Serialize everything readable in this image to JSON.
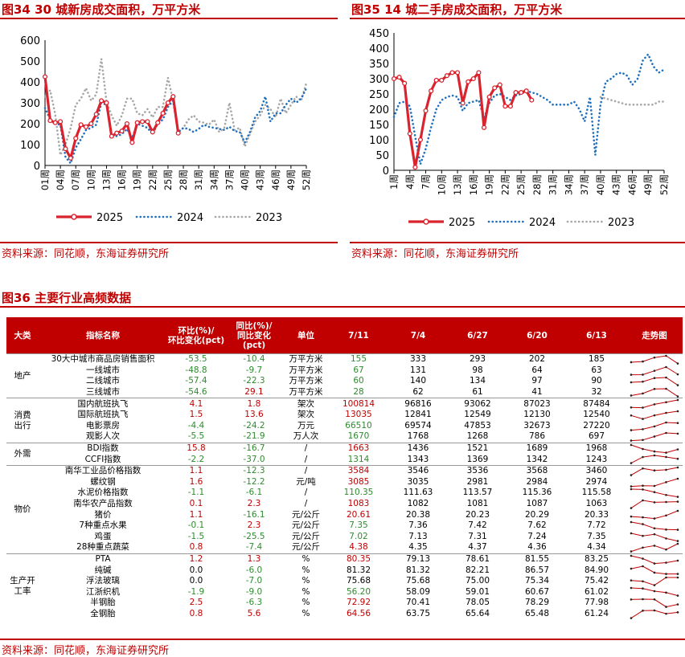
{
  "fig34": {
    "title": "图34 30 城新房成交面积，万平方米",
    "source": "资料来源：同花顺，东海证券研究所",
    "chart_data": {
      "type": "line",
      "title": "图34 30 城新房成交面积，万平方米",
      "xlabel": "",
      "ylabel": "",
      "ylim": [
        0,
        600
      ],
      "yticks": [
        0,
        100,
        200,
        300,
        400,
        500,
        600
      ],
      "xticks": [
        "01周",
        "04周",
        "07周",
        "10周",
        "13周",
        "16周",
        "19周",
        "22周",
        "25周",
        "28周",
        "31周",
        "34周",
        "37周",
        "40周",
        "43周",
        "46周",
        "49周",
        "52周"
      ],
      "legend_position": "bottom",
      "series": [
        {
          "name": "2025",
          "style": "solid-markers",
          "color": "#d9232e",
          "x": [
            1,
            2,
            3,
            4,
            5,
            6,
            7,
            8,
            9,
            10,
            11,
            12,
            13,
            14,
            15,
            16,
            17,
            18,
            19,
            20,
            21,
            22,
            23,
            24,
            25,
            26,
            27,
            28
          ],
          "values": [
            425,
            215,
            205,
            210,
            80,
            35,
            130,
            195,
            185,
            200,
            245,
            310,
            300,
            140,
            155,
            165,
            200,
            110,
            205,
            210,
            210,
            160,
            205,
            250,
            300,
            330,
            155,
            null
          ]
        },
        {
          "name": "2024",
          "style": "dotted",
          "color": "#1f6fbf",
          "x": [
            1,
            2,
            3,
            4,
            5,
            6,
            7,
            8,
            9,
            10,
            11,
            12,
            13,
            14,
            15,
            16,
            17,
            18,
            19,
            20,
            21,
            22,
            23,
            24,
            25,
            26,
            27,
            28,
            29,
            30,
            31,
            32,
            33,
            34,
            35,
            36,
            37,
            38,
            39,
            40,
            41,
            42,
            43,
            44,
            45,
            46,
            47,
            48,
            49,
            50,
            51,
            52
          ],
          "values": [
            275,
            220,
            200,
            195,
            40,
            10,
            85,
            125,
            170,
            180,
            195,
            300,
            290,
            145,
            140,
            150,
            175,
            130,
            200,
            190,
            180,
            150,
            200,
            220,
            280,
            310,
            160,
            180,
            175,
            160,
            175,
            195,
            185,
            180,
            175,
            170,
            185,
            165,
            160,
            110,
            160,
            230,
            260,
            330,
            210,
            250,
            250,
            290,
            320,
            300,
            320,
            370
          ]
        },
        {
          "name": "2023",
          "style": "dotted",
          "color": "#a6a6a6",
          "x": [
            1,
            2,
            3,
            4,
            5,
            6,
            7,
            8,
            9,
            10,
            11,
            12,
            13,
            14,
            15,
            16,
            17,
            18,
            19,
            20,
            21,
            22,
            23,
            24,
            25,
            26,
            27,
            28,
            29,
            30,
            31,
            32,
            33,
            34,
            35,
            36,
            37,
            38,
            39,
            40,
            41,
            42,
            43,
            44,
            45,
            46,
            47,
            48,
            49,
            50,
            51,
            52
          ],
          "values": [
            330,
            360,
            245,
            50,
            100,
            180,
            290,
            320,
            370,
            310,
            340,
            510,
            305,
            240,
            190,
            240,
            320,
            320,
            250,
            240,
            270,
            230,
            280,
            280,
            420,
            310,
            160,
            180,
            220,
            240,
            210,
            205,
            195,
            220,
            160,
            180,
            300,
            170,
            180,
            90,
            150,
            210,
            240,
            290,
            270,
            230,
            320,
            250,
            290,
            330,
            310,
            395
          ]
        }
      ]
    }
  },
  "fig35": {
    "title": "图35 14 城二手房成交面积，万平方米",
    "source": "资料来源：同花顺，东海证券研究所",
    "chart_data": {
      "type": "line",
      "title": "图35 14 城二手房成交面积，万平方米",
      "xlabel": "",
      "ylabel": "",
      "ylim": [
        0,
        450
      ],
      "yticks": [
        0,
        50,
        100,
        150,
        200,
        250,
        300,
        350,
        400,
        450
      ],
      "xticks": [
        "1周",
        "4周",
        "7周",
        "10周",
        "13周",
        "16周",
        "19周",
        "22周",
        "25周",
        "28周",
        "31周",
        "34周",
        "37周",
        "40周",
        "43周",
        "46周",
        "49周",
        "52周"
      ],
      "legend_position": "bottom",
      "series": [
        {
          "name": "2025",
          "style": "solid-markers",
          "color": "#d9232e",
          "x": [
            1,
            2,
            3,
            4,
            5,
            6,
            7,
            8,
            9,
            10,
            11,
            12,
            13,
            14,
            15,
            16,
            17,
            18,
            19,
            20,
            21,
            22,
            23,
            24,
            25,
            26,
            27,
            28
          ],
          "values": [
            300,
            305,
            285,
            120,
            10,
            100,
            195,
            260,
            295,
            295,
            310,
            320,
            320,
            220,
            290,
            300,
            320,
            140,
            240,
            270,
            280,
            210,
            210,
            255,
            255,
            260,
            230,
            null
          ]
        },
        {
          "name": "2024",
          "style": "dotted",
          "color": "#1f6fbf",
          "x": [
            1,
            2,
            3,
            4,
            5,
            6,
            7,
            8,
            9,
            10,
            11,
            12,
            13,
            14,
            15,
            16,
            17,
            18,
            19,
            20,
            21,
            22,
            23,
            24,
            25,
            26,
            27,
            28,
            29,
            30,
            31,
            32,
            33,
            34,
            35,
            36,
            37,
            38,
            39,
            40,
            41,
            42,
            43,
            44,
            45,
            46,
            47,
            48,
            49,
            50,
            51,
            52
          ],
          "values": [
            175,
            220,
            225,
            210,
            110,
            20,
            70,
            140,
            200,
            230,
            240,
            245,
            240,
            195,
            220,
            225,
            230,
            170,
            220,
            245,
            250,
            240,
            230,
            245,
            250,
            260,
            255,
            250,
            240,
            230,
            215,
            215,
            215,
            215,
            225,
            200,
            160,
            240,
            50,
            215,
            290,
            300,
            315,
            320,
            310,
            280,
            300,
            360,
            380,
            340,
            320,
            330
          ]
        },
        {
          "name": "2023",
          "style": "dotted",
          "color": "#a6a6a6",
          "x": [
            1,
            2,
            3,
            4,
            5,
            6,
            7,
            8,
            9,
            10,
            11,
            12,
            13,
            14,
            15,
            16,
            17,
            18,
            19,
            20,
            21,
            22,
            23,
            24,
            25,
            26,
            27,
            28,
            29,
            30,
            31,
            32,
            33,
            34,
            35,
            36,
            37,
            38,
            39,
            40,
            41,
            42,
            43,
            44,
            45,
            46,
            47,
            48,
            49,
            50,
            51,
            52
          ],
          "values": [
            null,
            null,
            null,
            null,
            null,
            null,
            null,
            null,
            null,
            null,
            null,
            null,
            null,
            null,
            null,
            null,
            null,
            null,
            null,
            null,
            null,
            null,
            null,
            null,
            null,
            null,
            null,
            null,
            null,
            null,
            null,
            null,
            null,
            null,
            null,
            null,
            null,
            null,
            null,
            240,
            235,
            230,
            225,
            220,
            215,
            215,
            215,
            215,
            215,
            215,
            225,
            225
          ]
        }
      ]
    }
  },
  "fig36": {
    "title": "图36 主要行业高频数据",
    "source": "资料来源：同花顺，东海证券研究所",
    "headers": [
      "大类",
      "指标名称",
      "环比(%)/环比变化(pct)",
      "同比(%)/同比变化(pct)",
      "单位",
      "7/11",
      "7/4",
      "6/27",
      "6/20",
      "6/13",
      "走势图"
    ],
    "h_hb": [
      "环比(%)/",
      "环比变化(pct)"
    ],
    "h_tb": [
      "同比(%)/",
      "同比变化",
      "(pct)"
    ],
    "groups": [
      {
        "name": [
          "地产"
        ],
        "rows": [
          {
            "name": "30大中城市商品房销售面积",
            "hb": "-53.5",
            "tb": "-10.4",
            "unit": "万平方米",
            "v": [
              "155",
              "333",
              "293",
              "202",
              "185"
            ],
            "vc": "g"
          },
          {
            "name": "一线城市",
            "hb": "-48.8",
            "tb": "-9.7",
            "unit": "万平方米",
            "v": [
              "67",
              "131",
              "98",
              "64",
              "63"
            ],
            "vc": "g"
          },
          {
            "name": "二线城市",
            "hb": "-57.4",
            "tb": "-22.3",
            "unit": "万平方米",
            "v": [
              "60",
              "140",
              "134",
              "97",
              "90"
            ],
            "vc": "g"
          },
          {
            "name": "三线城市",
            "hb": "-54.6",
            "tb": "29.1",
            "unit": "万平方米",
            "v": [
              "28",
              "62",
              "61",
              "41",
              "32"
            ],
            "vc": "g"
          }
        ]
      },
      {
        "name": [
          "消费",
          "出行"
        ],
        "rows": [
          {
            "name": "国内航班执飞",
            "hb": "4.1",
            "tb": "1.8",
            "unit": "架次",
            "v": [
              "100814",
              "96816",
              "93062",
              "87023",
              "87484"
            ],
            "vc": "r"
          },
          {
            "name": "国际航班执飞",
            "hb": "1.5",
            "tb": "13.6",
            "unit": "架次",
            "v": [
              "13035",
              "12841",
              "12549",
              "12130",
              "12540"
            ],
            "vc": "r"
          },
          {
            "name": "电影票房",
            "hb": "-4.4",
            "tb": "-24.2",
            "unit": "万元",
            "v": [
              "66510",
              "69574",
              "47853",
              "32673",
              "27220"
            ],
            "vc": "g"
          },
          {
            "name": "观影人次",
            "hb": "-5.5",
            "tb": "-21.9",
            "unit": "万人次",
            "v": [
              "1670",
              "1768",
              "1268",
              "786",
              "697"
            ],
            "vc": "g"
          }
        ]
      },
      {
        "name": [
          "外需"
        ],
        "rows": [
          {
            "name": "BDI指数",
            "hb": "15.8",
            "tb": "-16.7",
            "unit": "/",
            "v": [
              "1663",
              "1436",
              "1521",
              "1689",
              "1968"
            ],
            "vc": "r"
          },
          {
            "name": "CCFI指数",
            "hb": "-2.2",
            "tb": "-37.0",
            "unit": "/",
            "v": [
              "1314",
              "1343",
              "1369",
              "1342",
              "1243"
            ],
            "vc": "g"
          }
        ]
      },
      {
        "name": [
          "物价"
        ],
        "rows": [
          {
            "name": "南华工业品价格指数",
            "hb": "1.1",
            "tb": "-12.3",
            "unit": "/",
            "v": [
              "3584",
              "3546",
              "3536",
              "3568",
              "3460"
            ],
            "vc": "r"
          },
          {
            "name": "螺纹钢",
            "hb": "1.6",
            "tb": "-12.2",
            "unit": "元/吨",
            "v": [
              "3085",
              "3035",
              "2981",
              "2984",
              "2974"
            ],
            "vc": "r"
          },
          {
            "name": "水泥价格指数",
            "hb": "-1.1",
            "tb": "-6.1",
            "unit": "/",
            "v": [
              "110.35",
              "111.63",
              "113.57",
              "115.36",
              "115.58"
            ],
            "vc": "g"
          },
          {
            "name": "南华农产品指数",
            "hb": "0.1",
            "tb": "2.3",
            "unit": "/",
            "v": [
              "1083",
              "1082",
              "1081",
              "1087",
              "1063"
            ],
            "vc": "r"
          },
          {
            "name": "猪价",
            "hb": "1.1",
            "tb": "-16.1",
            "unit": "元/公斤",
            "v": [
              "20.61",
              "20.38",
              "20.23",
              "20.29",
              "20.33"
            ],
            "vc": "r"
          },
          {
            "name": "7种重点水果",
            "hb": "-0.1",
            "tb": "2.3",
            "unit": "元/公斤",
            "v": [
              "7.35",
              "7.36",
              "7.42",
              "7.62",
              "7.72"
            ],
            "vc": "g"
          },
          {
            "name": "鸡蛋",
            "hb": "-1.5",
            "tb": "-25.5",
            "unit": "元/公斤",
            "v": [
              "7.02",
              "7.13",
              "7.31",
              "7.24",
              "7.35"
            ],
            "vc": "g"
          },
          {
            "name": "28种重点蔬菜",
            "hb": "0.8",
            "tb": "-7.4",
            "unit": "元/公斤",
            "v": [
              "4.38",
              "4.35",
              "4.37",
              "4.36",
              "4.34"
            ],
            "vc": "r"
          }
        ]
      },
      {
        "name": [
          "生产开",
          "工率"
        ],
        "rows": [
          {
            "name": "PTA",
            "hb": "1.2",
            "tb": "1.3",
            "unit": "%",
            "v": [
              "80.35",
              "79.13",
              "78.61",
              "81.55",
              "83.25"
            ],
            "vc": "r"
          },
          {
            "name": "纯碱",
            "hb": "0.0",
            "tb": "-6.0",
            "unit": "%",
            "v": [
              "81.32",
              "81.32",
              "82.21",
              "86.57",
              "84.90"
            ],
            "vc": "k"
          },
          {
            "name": "浮法玻璃",
            "hb": "0.0",
            "tb": "-7.0",
            "unit": "%",
            "v": [
              "75.68",
              "75.68",
              "75.00",
              "75.34",
              "75.42"
            ],
            "vc": "k"
          },
          {
            "name": "江浙织机",
            "hb": "-1.9",
            "tb": "-9.0",
            "unit": "%",
            "v": [
              "56.20",
              "58.09",
              "59.01",
              "60.67",
              "61.02"
            ],
            "vc": "g"
          },
          {
            "name": "半钢胎",
            "hb": "2.5",
            "tb": "-6.3",
            "unit": "%",
            "v": [
              "72.92",
              "70.41",
              "78.05",
              "78.29",
              "77.98"
            ],
            "vc": "r"
          },
          {
            "name": "全钢胎",
            "hb": "0.8",
            "tb": "5.6",
            "unit": "%",
            "v": [
              "64.56",
              "63.75",
              "65.64",
              "65.48",
              "61.24"
            ],
            "vc": "r"
          }
        ]
      }
    ]
  }
}
